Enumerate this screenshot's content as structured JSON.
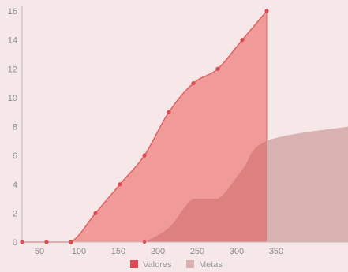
{
  "chart_data": {
    "type": "area",
    "xlim": [
      28,
      441
    ],
    "ylim": [
      0,
      16
    ],
    "x_ticks": [
      50,
      100,
      150,
      200,
      250,
      300,
      350
    ],
    "y_ticks": [
      0,
      2,
      4,
      6,
      8,
      10,
      12,
      14,
      16
    ],
    "grid": false,
    "legend_position": "bottom",
    "colors": {
      "background": "#f6e8e8",
      "valores_fill": "#f09a9a",
      "valores_line": "#e06464",
      "valores_marker": "#dd4a52",
      "metas_fill": "#dd8080",
      "metas_fill_extended": "#d8b1b1",
      "axis": "#c9b9b9",
      "tick_text": "#8c8c8c"
    },
    "series": [
      {
        "name": "Valores",
        "x": [
          28,
          59,
          90,
          121,
          152,
          183,
          214,
          245,
          276,
          307,
          338
        ],
        "values": [
          0,
          0,
          0,
          2,
          4,
          6,
          9,
          11,
          12,
          14,
          16
        ]
      },
      {
        "name": "Metas",
        "x": [
          183,
          214,
          245,
          276,
          307,
          338,
          441
        ],
        "values": [
          0,
          1,
          3,
          3,
          5,
          7,
          8
        ]
      }
    ]
  }
}
